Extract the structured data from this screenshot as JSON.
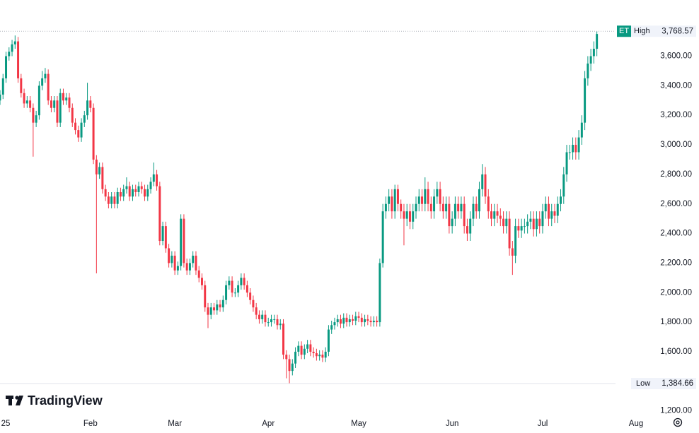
{
  "chart_data": {
    "type": "candlestick",
    "brand": "TradingView",
    "symbol_badge": "ET",
    "up_color": "#089981",
    "down_color": "#f23645",
    "xlim": [
      0,
      230
    ],
    "xticks": [
      {
        "value": 0,
        "label": "25"
      },
      {
        "value": 30,
        "label": "Feb"
      },
      {
        "value": 58,
        "label": "Mar"
      },
      {
        "value": 89,
        "label": "Apr"
      },
      {
        "value": 119,
        "label": "May"
      },
      {
        "value": 150,
        "label": "Jun"
      },
      {
        "value": 180,
        "label": "Jul"
      },
      {
        "value": 211,
        "label": "Aug"
      }
    ],
    "ylim": [
      1160,
      3980
    ],
    "yticks": [
      {
        "value": 1200,
        "label": "1,200.00"
      },
      {
        "value": 1600,
        "label": "1,600.00"
      },
      {
        "value": 1800,
        "label": "1,800.00"
      },
      {
        "value": 2000,
        "label": "2,000.00"
      },
      {
        "value": 2200,
        "label": "2,200.00"
      },
      {
        "value": 2400,
        "label": "2,400.00"
      },
      {
        "value": 2600,
        "label": "2,600.00"
      },
      {
        "value": 2800,
        "label": "2,800.00"
      },
      {
        "value": 3000,
        "label": "3,000.00"
      },
      {
        "value": 3200,
        "label": "3,200.00"
      },
      {
        "value": 3400,
        "label": "3,400.00"
      },
      {
        "value": 3600,
        "label": "3,600.00"
      }
    ],
    "grid": false,
    "annotations": {
      "high": {
        "label": "High",
        "value": 3768.57,
        "value_label": "3,768.57"
      },
      "low": {
        "label": "Low",
        "value": 1384.66,
        "value_label": "1,384.66"
      }
    },
    "open": [
      3300,
      3340,
      3450,
      3600,
      3630,
      3680,
      3700,
      3450,
      3350,
      3280,
      3300,
      3250,
      3150,
      3200,
      3400,
      3450,
      3480,
      3300,
      3250,
      3300,
      3150,
      3350,
      3300,
      3320,
      3250,
      3150,
      3100,
      3050,
      3150,
      3200,
      3300,
      3250,
      2900,
      2800,
      2850,
      2700,
      2650,
      2600,
      2650,
      2600,
      2680,
      2650,
      2700,
      2720,
      2650,
      2700,
      2680,
      2720,
      2700,
      2650,
      2700,
      2750,
      2800,
      2720,
      2350,
      2450,
      2300,
      2200,
      2250,
      2150,
      2180,
      2500,
      2200,
      2150,
      2200,
      2250,
      2150,
      2100,
      2050,
      1900,
      1850,
      1900,
      1880,
      1920,
      1900,
      1950,
      2050,
      2080,
      2000,
      2000,
      2050,
      2100,
      2050,
      2000,
      1950,
      1900,
      1850,
      1820,
      1850,
      1800,
      1800,
      1820,
      1820,
      1780,
      1790,
      1580,
      1550,
      1470,
      1520,
      1600,
      1640,
      1580,
      1620,
      1650,
      1600,
      1590,
      1570,
      1580,
      1560,
      1600,
      1750,
      1780,
      1800,
      1820,
      1790,
      1830,
      1800,
      1820,
      1810,
      1840,
      1830,
      1800,
      1820,
      1810,
      1800,
      1810,
      1800,
      2200,
      2550,
      2600,
      2650,
      2550,
      2700,
      2600,
      2550,
      2500,
      2550,
      2480,
      2550,
      2600,
      2650,
      2600,
      2700,
      2600,
      2550,
      2650,
      2700,
      2600,
      2550,
      2600,
      2450,
      2500,
      2600,
      2550,
      2600,
      2450,
      2400,
      2500,
      2600,
      2550,
      2700,
      2800,
      2650,
      2550,
      2500,
      2550,
      2520,
      2500,
      2450,
      2500,
      2300,
      2250,
      2450,
      2420,
      2450,
      2450,
      2480,
      2500,
      2430,
      2500,
      2450,
      2550,
      2600,
      2500,
      2550,
      2520,
      2600,
      2650,
      2800,
      2950,
      2950,
      3000,
      2950,
      3050,
      3150,
      3450,
      3550,
      3600,
      3650
    ],
    "high": [
      3370,
      3480,
      3630,
      3660,
      3710,
      3740,
      3730,
      3480,
      3380,
      3330,
      3330,
      3280,
      3230,
      3430,
      3500,
      3520,
      3510,
      3330,
      3330,
      3330,
      3380,
      3380,
      3350,
      3350,
      3280,
      3180,
      3130,
      3180,
      3230,
      3420,
      3330,
      3280,
      2930,
      2880,
      2880,
      2730,
      2680,
      2680,
      2680,
      2710,
      2710,
      2730,
      2780,
      2750,
      2730,
      2730,
      2750,
      2750,
      2730,
      2730,
      2780,
      2880,
      2830,
      2750,
      2480,
      2480,
      2330,
      2280,
      2280,
      2210,
      2530,
      2530,
      2230,
      2230,
      2280,
      2280,
      2180,
      2130,
      2080,
      1930,
      1930,
      1930,
      1950,
      1950,
      1980,
      2080,
      2110,
      2110,
      2030,
      2080,
      2130,
      2130,
      2080,
      2030,
      1980,
      1930,
      1880,
      1880,
      1880,
      1830,
      1850,
      1850,
      1850,
      1820,
      1820,
      1610,
      1580,
      1550,
      1630,
      1670,
      1670,
      1650,
      1680,
      1680,
      1630,
      1620,
      1610,
      1610,
      1630,
      1780,
      1810,
      1830,
      1850,
      1850,
      1860,
      1860,
      1850,
      1850,
      1870,
      1870,
      1860,
      1850,
      1850,
      1840,
      1840,
      1840,
      2230,
      2600,
      2650,
      2700,
      2700,
      2730,
      2730,
      2630,
      2600,
      2600,
      2600,
      2600,
      2650,
      2700,
      2700,
      2780,
      2750,
      2650,
      2700,
      2750,
      2750,
      2650,
      2650,
      2650,
      2550,
      2650,
      2650,
      2650,
      2650,
      2500,
      2550,
      2650,
      2650,
      2750,
      2870,
      2850,
      2700,
      2600,
      2600,
      2600,
      2570,
      2550,
      2550,
      2550,
      2350,
      2500,
      2500,
      2500,
      2500,
      2530,
      2550,
      2550,
      2550,
      2550,
      2600,
      2650,
      2650,
      2600,
      2600,
      2650,
      2700,
      2850,
      3000,
      3000,
      3050,
      3050,
      3100,
      3200,
      3500,
      3600,
      3650,
      3700,
      3768.57
    ],
    "low": [
      3270,
      3310,
      3420,
      3570,
      3600,
      3650,
      3420,
      3320,
      3250,
      3250,
      3220,
      2920,
      3120,
      3170,
      3370,
      3420,
      3270,
      3220,
      3220,
      3120,
      3120,
      3270,
      3270,
      3220,
      3120,
      3070,
      3020,
      3020,
      3120,
      3170,
      3220,
      2870,
      2130,
      2770,
      2670,
      2620,
      2570,
      2570,
      2570,
      2570,
      2620,
      2620,
      2670,
      2620,
      2620,
      2650,
      2650,
      2670,
      2620,
      2620,
      2670,
      2720,
      2690,
      2320,
      2320,
      2270,
      2170,
      2170,
      2120,
      2120,
      2150,
      2170,
      2120,
      2120,
      2170,
      2120,
      2070,
      2020,
      1870,
      1760,
      1820,
      1850,
      1850,
      1870,
      1870,
      1920,
      2020,
      1970,
      1970,
      1970,
      2020,
      2020,
      1970,
      1920,
      1870,
      1820,
      1790,
      1790,
      1770,
      1770,
      1770,
      1790,
      1750,
      1750,
      1550,
      1420,
      1384.66,
      1440,
      1490,
      1570,
      1550,
      1550,
      1590,
      1570,
      1560,
      1540,
      1540,
      1530,
      1530,
      1570,
      1720,
      1750,
      1770,
      1760,
      1760,
      1770,
      1770,
      1780,
      1780,
      1800,
      1770,
      1770,
      1780,
      1770,
      1770,
      1770,
      1770,
      2170,
      2500,
      2550,
      2500,
      2500,
      2550,
      2500,
      2320,
      2450,
      2430,
      2430,
      2500,
      2550,
      2550,
      2550,
      2550,
      2500,
      2500,
      2600,
      2550,
      2500,
      2500,
      2400,
      2400,
      2450,
      2500,
      2500,
      2400,
      2350,
      2350,
      2450,
      2500,
      2500,
      2650,
      2600,
      2500,
      2450,
      2450,
      2470,
      2450,
      2400,
      2400,
      2250,
      2120,
      2200,
      2370,
      2370,
      2400,
      2400,
      2430,
      2380,
      2380,
      2400,
      2400,
      2500,
      2450,
      2450,
      2470,
      2470,
      2550,
      2600,
      2750,
      2900,
      2900,
      2900,
      2900,
      3000,
      3100,
      3400,
      3500,
      3550,
      3600
    ],
    "close": [
      3340,
      3450,
      3600,
      3630,
      3680,
      3700,
      3450,
      3350,
      3280,
      3300,
      3250,
      3150,
      3200,
      3400,
      3450,
      3480,
      3300,
      3250,
      3300,
      3150,
      3350,
      3300,
      3320,
      3250,
      3150,
      3100,
      3050,
      3150,
      3200,
      3300,
      3250,
      2900,
      2800,
      2850,
      2700,
      2650,
      2600,
      2650,
      2600,
      2680,
      2650,
      2700,
      2720,
      2650,
      2700,
      2680,
      2720,
      2700,
      2650,
      2700,
      2750,
      2800,
      2720,
      2350,
      2450,
      2300,
      2200,
      2250,
      2150,
      2180,
      2500,
      2200,
      2150,
      2200,
      2250,
      2150,
      2100,
      2050,
      1900,
      1850,
      1900,
      1880,
      1920,
      1900,
      1950,
      2050,
      2080,
      2000,
      2000,
      2050,
      2100,
      2050,
      2000,
      1950,
      1900,
      1850,
      1820,
      1850,
      1800,
      1800,
      1820,
      1820,
      1780,
      1790,
      1580,
      1550,
      1470,
      1520,
      1600,
      1640,
      1580,
      1620,
      1650,
      1600,
      1590,
      1570,
      1580,
      1560,
      1600,
      1750,
      1780,
      1800,
      1820,
      1790,
      1830,
      1800,
      1820,
      1810,
      1840,
      1830,
      1800,
      1820,
      1810,
      1800,
      1810,
      1800,
      2200,
      2550,
      2600,
      2650,
      2550,
      2700,
      2600,
      2550,
      2500,
      2550,
      2480,
      2550,
      2600,
      2650,
      2600,
      2700,
      2600,
      2550,
      2650,
      2700,
      2600,
      2550,
      2600,
      2450,
      2500,
      2600,
      2550,
      2600,
      2450,
      2400,
      2500,
      2600,
      2550,
      2700,
      2800,
      2650,
      2550,
      2500,
      2550,
      2520,
      2500,
      2450,
      2500,
      2300,
      2250,
      2450,
      2420,
      2450,
      2450,
      2480,
      2500,
      2430,
      2500,
      2450,
      2550,
      2600,
      2500,
      2550,
      2520,
      2600,
      2650,
      2800,
      2950,
      2950,
      3000,
      2950,
      3050,
      3150,
      3450,
      3550,
      3600,
      3650,
      3750
    ]
  }
}
